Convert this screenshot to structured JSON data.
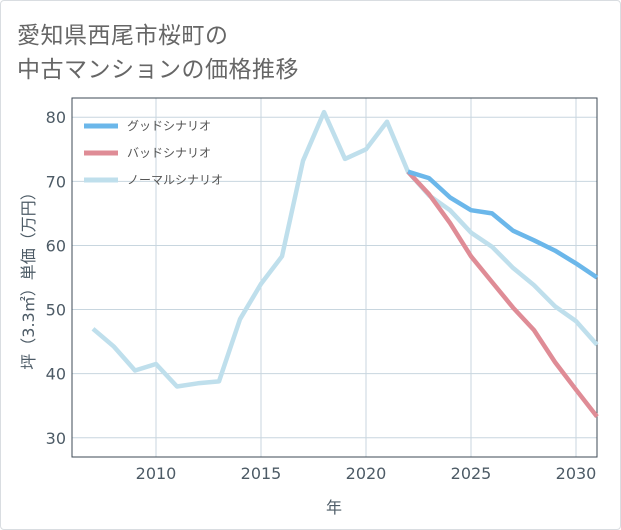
{
  "title_lines": [
    "愛知県西尾市桜町の",
    "中古マンションの価格推移"
  ],
  "chart_data": {
    "type": "line",
    "xlabel": "年",
    "ylabel": "坪（3.3㎡）単価（万円）",
    "xlim": [
      2006,
      2031
    ],
    "ylim": [
      27,
      83
    ],
    "xticks": [
      2010,
      2015,
      2020,
      2025,
      2030
    ],
    "yticks": [
      30,
      40,
      50,
      60,
      70,
      80
    ],
    "grid": true,
    "legend_position": "top-left",
    "series": [
      {
        "name": "グッドシナリオ",
        "color": "#6bb7ea",
        "points": [
          [
            2022,
            71.5
          ],
          [
            2023,
            70.5
          ],
          [
            2024,
            67.5
          ],
          [
            2025,
            65.5
          ],
          [
            2026,
            65.0
          ],
          [
            2027,
            62.3
          ],
          [
            2028,
            60.8
          ],
          [
            2029,
            59.2
          ],
          [
            2030,
            57.2
          ],
          [
            2031,
            55.0
          ]
        ]
      },
      {
        "name": "バッドシナリオ",
        "color": "#df8c96",
        "points": [
          [
            2022,
            71.5
          ],
          [
            2023,
            68.0
          ],
          [
            2024,
            63.5
          ],
          [
            2025,
            58.3
          ],
          [
            2026,
            54.3
          ],
          [
            2027,
            50.3
          ],
          [
            2028,
            46.8
          ],
          [
            2029,
            41.8
          ],
          [
            2030,
            37.5
          ],
          [
            2031,
            33.3
          ]
        ]
      },
      {
        "name": "ノーマルシナリオ",
        "color": "#bfdfec",
        "points": [
          [
            2007,
            47.0
          ],
          [
            2008,
            44.2
          ],
          [
            2009,
            40.5
          ],
          [
            2010,
            41.5
          ],
          [
            2011,
            38.0
          ],
          [
            2012,
            38.5
          ],
          [
            2013,
            38.8
          ],
          [
            2014,
            48.5
          ],
          [
            2015,
            54.0
          ],
          [
            2016,
            58.3
          ],
          [
            2017,
            73.2
          ],
          [
            2018,
            80.8
          ],
          [
            2019,
            73.5
          ],
          [
            2020,
            75.0
          ],
          [
            2021,
            79.3
          ],
          [
            2022,
            71.5
          ],
          [
            2023,
            67.8
          ],
          [
            2024,
            65.5
          ],
          [
            2025,
            62.0
          ],
          [
            2026,
            59.8
          ],
          [
            2027,
            56.5
          ],
          [
            2028,
            53.8
          ],
          [
            2029,
            50.5
          ],
          [
            2030,
            48.2
          ],
          [
            2031,
            44.5
          ]
        ]
      }
    ]
  }
}
